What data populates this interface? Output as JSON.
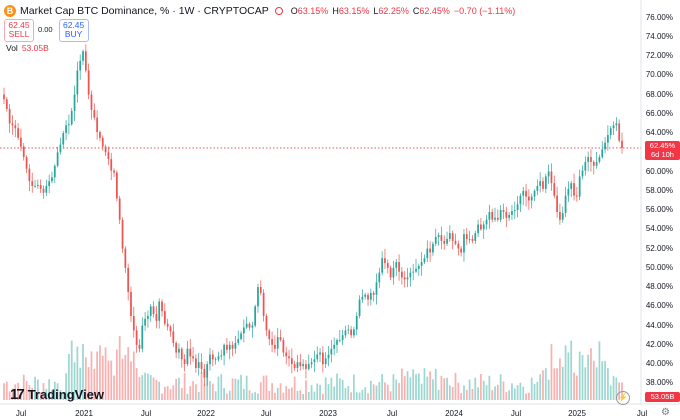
{
  "header": {
    "icon_letter": "B",
    "title": "Market Cap BTC Dominance, % · 1W · CRYPTOCAP",
    "ohlc": [
      {
        "k": "O",
        "v": "63.15%"
      },
      {
        "k": "H",
        "v": "63.15%"
      },
      {
        "k": "L",
        "v": "62.25%"
      },
      {
        "k": "C",
        "v": "62.45%"
      },
      {
        "k": "",
        "v": "−0.70 (−1.11%)"
      }
    ]
  },
  "trade": {
    "sell_price": "62.45",
    "sell_label": "SELL",
    "spread": "0.00",
    "buy_price": "62.45",
    "buy_label": "BUY"
  },
  "volume": {
    "label": "Vol",
    "value": "53.05B"
  },
  "price_tag": {
    "price": "62.45%",
    "countdown": "6d 10h"
  },
  "volume_tag": "53.05B",
  "logo_text": "TradingView",
  "colors": {
    "up": "#26a69a",
    "down": "#ef5350",
    "accent": "#f23645",
    "brand": "#f7931a"
  },
  "chart_data": {
    "type": "candlestick",
    "y_axis_ticks": [
      "76.00%",
      "74.00%",
      "72.00%",
      "70.00%",
      "68.00%",
      "66.00%",
      "64.00%",
      "62.00%",
      "60.00%",
      "58.00%",
      "56.00%",
      "54.00%",
      "52.00%",
      "50.00%",
      "48.00%",
      "46.00%",
      "44.00%",
      "42.00%",
      "40.00%",
      "38.00%"
    ],
    "ylim": [
      37,
      76.5
    ],
    "x_axis_labels": [
      "Jul",
      "2021",
      "Jul",
      "2022",
      "Jul",
      "2023",
      "Jul",
      "2024",
      "Jul",
      "2025",
      "Jul"
    ],
    "current_price": 62.45,
    "series": [
      {
        "name": "close",
        "values": [
          67.5,
          66.5,
          65.0,
          64.8,
          64.5,
          63.5,
          62.6,
          61.5,
          60.3,
          59.0,
          58.5,
          58.5,
          58.6,
          58.2,
          57.8,
          58.5,
          59.0,
          59.4,
          60.6,
          62.0,
          62.8,
          64.0,
          64.8,
          64.9,
          66.3,
          68.0,
          70.5,
          71.5,
          72.5,
          70.5,
          68.0,
          66.4,
          65.6,
          64.1,
          63.5,
          62.6,
          62.0,
          61.3,
          60.1,
          59.9,
          57.2,
          55.0,
          52.0,
          50.0,
          47.5,
          45.0,
          43.5,
          42.0,
          41.6,
          44.0,
          44.7,
          45.0,
          46.0,
          45.2,
          44.5,
          46.5,
          45.5,
          44.2,
          43.9,
          43.4,
          42.2,
          41.2,
          41.6,
          40.5,
          40.0,
          41.6,
          40.8,
          40.6,
          39.6,
          40.2,
          39.5,
          38.6,
          40.0,
          41.0,
          40.5,
          40.5,
          40.8,
          40.9,
          42.0,
          41.5,
          42.0,
          41.6,
          42.2,
          42.6,
          43.2,
          43.8,
          44.2,
          43.8,
          44.0,
          46.0,
          48.0,
          47.4,
          45.0,
          43.5,
          42.6,
          42.0,
          41.6,
          42.8,
          42.5,
          41.2,
          40.8,
          40.6,
          40.0,
          39.6,
          40.2,
          39.8,
          40.0,
          39.5,
          40.0,
          40.2,
          40.5,
          41.0,
          41.2,
          40.0,
          40.6,
          41.0,
          41.6,
          42.0,
          42.5,
          42.5,
          43.0,
          43.5,
          43.6,
          43.0,
          43.6,
          45.0,
          46.7,
          47.0,
          47.2,
          46.7,
          47.4,
          47.2,
          48.5,
          49.5,
          51.0,
          50.5,
          50.0,
          49.0,
          50.0,
          50.6,
          49.6,
          49.0,
          48.8,
          49.0,
          49.5,
          49.6,
          49.9,
          50.2,
          50.6,
          51.0,
          52.0,
          51.6,
          52.5,
          53.2,
          53.4,
          52.8,
          52.5,
          53.0,
          53.6,
          52.8,
          52.5,
          52.0,
          51.6,
          53.5,
          53.0,
          53.0,
          52.8,
          53.6,
          54.5,
          54.0,
          54.5,
          55.0,
          55.8,
          55.0,
          55.2,
          55.0,
          56.0,
          55.8,
          55.2,
          55.5,
          55.9,
          56.0,
          56.6,
          57.5,
          58.0,
          57.4,
          57.0,
          57.4,
          58.0,
          58.5,
          59.0,
          58.2,
          59.5,
          60.0,
          58.8,
          57.5,
          55.8,
          55.0,
          55.7,
          57.5,
          58.2,
          58.8,
          57.5,
          57.4,
          59.5,
          60.1,
          61.0,
          61.5,
          61.0,
          60.6,
          61.0,
          61.5,
          62.3,
          63.0,
          63.8,
          64.5,
          64.8,
          65.0,
          63.2,
          62.45
        ]
      }
    ]
  }
}
